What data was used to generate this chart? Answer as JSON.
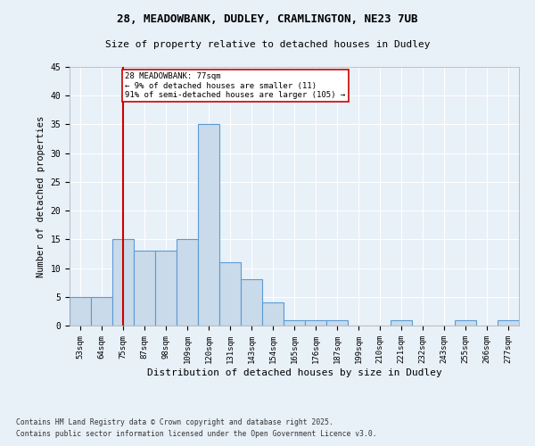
{
  "title1": "28, MEADOWBANK, DUDLEY, CRAMLINGTON, NE23 7UB",
  "title2": "Size of property relative to detached houses in Dudley",
  "xlabel": "Distribution of detached houses by size in Dudley",
  "ylabel": "Number of detached properties",
  "categories": [
    "53sqm",
    "64sqm",
    "75sqm",
    "87sqm",
    "98sqm",
    "109sqm",
    "120sqm",
    "131sqm",
    "143sqm",
    "154sqm",
    "165sqm",
    "176sqm",
    "187sqm",
    "199sqm",
    "210sqm",
    "221sqm",
    "232sqm",
    "243sqm",
    "255sqm",
    "266sqm",
    "277sqm"
  ],
  "values": [
    5,
    5,
    15,
    13,
    13,
    15,
    35,
    11,
    8,
    4,
    1,
    1,
    1,
    0,
    0,
    1,
    0,
    0,
    1,
    0,
    1
  ],
  "bar_color": "#c9daea",
  "bar_edge_color": "#5b9bd5",
  "background_color": "#e8f0f8",
  "grid_color": "#ffffff",
  "red_line_x": 2,
  "annotation_text": "28 MEADOWBANK: 77sqm\n← 9% of detached houses are smaller (11)\n91% of semi-detached houses are larger (105) →",
  "annotation_box_color": "#ffffff",
  "annotation_box_edge": "#cc0000",
  "red_line_color": "#cc0000",
  "footer1": "Contains HM Land Registry data © Crown copyright and database right 2025.",
  "footer2": "Contains public sector information licensed under the Open Government Licence v3.0.",
  "ylim": [
    0,
    45
  ],
  "yticks": [
    0,
    5,
    10,
    15,
    20,
    25,
    30,
    35,
    40,
    45
  ]
}
